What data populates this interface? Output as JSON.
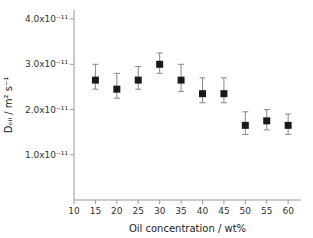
{
  "chart_data": {
    "type": "scatter",
    "x_label": "Oil concentration / wt%",
    "y_label": "Dₒᵢₗ / m² s⁻¹",
    "x": [
      15,
      20,
      25,
      30,
      35,
      40,
      45,
      50,
      55,
      60
    ],
    "values": [
      2.65e-11,
      2.45e-11,
      2.65e-11,
      3e-11,
      2.65e-11,
      2.35e-11,
      2.35e-11,
      1.65e-11,
      1.75e-11,
      1.65e-11
    ],
    "error_lower": [
      2e-12,
      2e-12,
      2e-12,
      2e-12,
      2.5e-12,
      2e-12,
      2e-12,
      2e-12,
      2e-12,
      2e-12
    ],
    "error_upper": [
      3.5e-12,
      3.5e-12,
      3e-12,
      2.5e-12,
      3.5e-12,
      3.5e-12,
      3.5e-12,
      3e-12,
      2.5e-12,
      2.5e-12
    ],
    "xlim": [
      10,
      63
    ],
    "ylim": [
      0,
      4.2e-11
    ],
    "xticks": [
      10,
      15,
      20,
      25,
      30,
      35,
      40,
      45,
      50,
      55,
      60
    ],
    "yticks": [
      {
        "value": 1e-11,
        "label": "1.0x10⁻¹¹"
      },
      {
        "value": 2e-11,
        "label": "2.0x10⁻¹¹"
      },
      {
        "value": 3e-11,
        "label": "3.0x10⁻¹¹"
      },
      {
        "value": 4e-11,
        "label": "4.0x10⁻¹¹"
      }
    ],
    "color": "#1a1a1a",
    "marker": "square",
    "grid": false
  }
}
